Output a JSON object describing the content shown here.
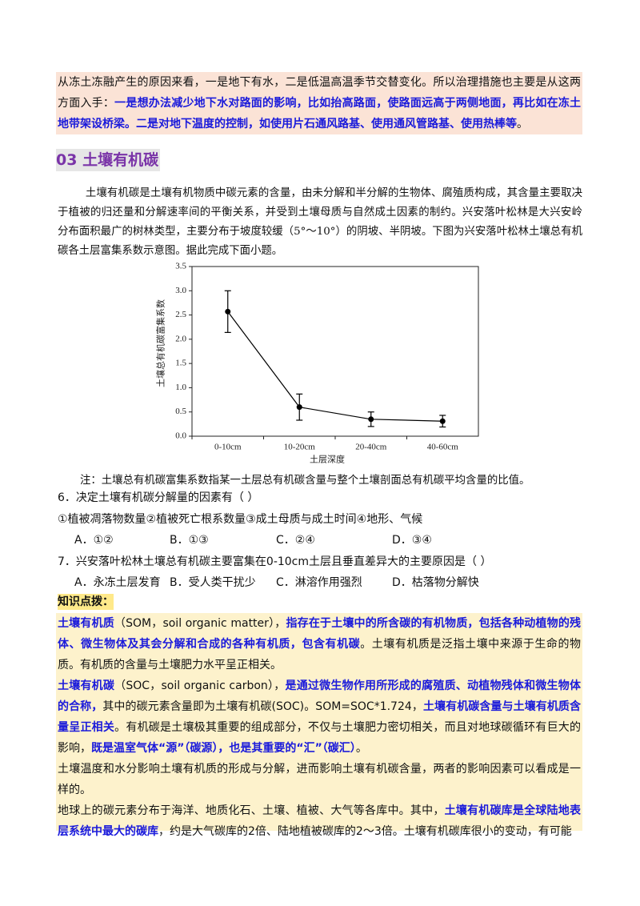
{
  "top_note": {
    "segments": [
      {
        "text": "从冻土冻融产生的原因来看，一是地下有水，二是低温高温季节交替变化。所以治理措施也主要是从这两方面入手：",
        "emphasis": false
      },
      {
        "text": "一是想办法减少地下水对路面的影响，比如抬高路面，使路面远高于两侧地面，再比如在冻土地带架设桥梁。二是对地下温度的控制，如使用片石通风路基、使用通风管路基、使用热棒等",
        "emphasis": true
      },
      {
        "text": "。",
        "emphasis": false
      }
    ]
  },
  "section": {
    "number": "03",
    "title": "土壤有机碳"
  },
  "intro": "土壤有机碳是土壤有机物质中碳元素的含量，由未分解和半分解的生物体、腐殖质构成，其含量主要取决于植被的归还量和分解速率间的平衡关系，并受到土壤母质与自然成土因素的制约。兴安落叶松林是大兴安岭分布面积最广的树林类型，主要分布于坡度较缓（5°～10°）的阴坡、半阴坡。下图为兴安落叶松林土壤总有机碳各土层富集系数示意图。据此完成下面小题。",
  "chart_data": {
    "type": "line",
    "x_label": "土层深度",
    "y_label": "土壤总有机碳富集系数",
    "categories": [
      "0-10cm",
      "10-20cm",
      "20-40cm",
      "40-60cm"
    ],
    "values": [
      2.57,
      0.6,
      0.35,
      0.31
    ],
    "errors": [
      0.43,
      0.27,
      0.15,
      0.12
    ],
    "color": "#000000",
    "ylim": [
      0,
      3.5
    ],
    "yticks": [
      {
        "value": 0,
        "label": "0.0"
      },
      0.5,
      {
        "value": 1,
        "label": "1.0"
      },
      1.5,
      {
        "value": 2,
        "label": "2.0"
      },
      2.5,
      {
        "value": 3,
        "label": "3.0"
      },
      3.5
    ]
  },
  "chart_note": "注：土壤总有机碳富集系数指某一土层总有机碳含量与整个土壤剖面总有机碳平均含量的比值。",
  "questions": [
    {
      "stem": "6．决定土壤有机碳分解量的因素有（    ）",
      "statement": "①植被凋落物数量②植被死亡根系数量③成土母质与成土时间④地形、气候",
      "options": [
        "A．①②",
        "B．①③",
        "C．②④",
        "D．③④"
      ]
    },
    {
      "stem": "7．兴安落叶松林土壤总有机碳主要富集在0-10cm土层且垂直差异大的主要原因是（    ）",
      "options": [
        "A．永冻土层发育",
        "B．受人类干扰少",
        "C．淋溶作用强烈",
        "D．枯落物分解快"
      ]
    }
  ],
  "knowledge": {
    "title": "知识点拨：",
    "paragraphs": [
      {
        "segments": [
          {
            "text": "土壤有机质",
            "emphasis": true
          },
          {
            "text": "（SOM，soil organic matter），",
            "emphasis": false
          },
          {
            "text": "指存在于土壤中的所含碳的有机物质，包括各种动植物的残体、微生物体及其会分解和合成的各种有机质，包含有机碳",
            "emphasis": true
          },
          {
            "text": "。土壤有机质是泛指土壤中来源于生命的物质。有机质的含量与土壤肥力水平呈正相关。",
            "emphasis": false
          }
        ]
      },
      {
        "segments": [
          {
            "text": "土壤有机碳",
            "emphasis": true
          },
          {
            "text": "（SOC，soil organic carbon），",
            "emphasis": false
          },
          {
            "text": "是通过微生物作用所形成的腐殖质、动植物残体和微生物体的合称，",
            "emphasis": true
          },
          {
            "text": "其中的碳元素含量即为土壤有机碳(SOC)。SOM=SOC*1.724，",
            "emphasis": false
          },
          {
            "text": "土壤有机碳含量与土壤有机质含量呈正相关",
            "emphasis": true
          },
          {
            "text": "。有机碳是土壤极其重要的组成部分，不仅与土壤肥力密切相关，而且对地球碳循环有巨大的影响，",
            "emphasis": false
          },
          {
            "text": "既是温室气体“源”（碳源），也是其重要的“汇”（碳汇）",
            "emphasis": true
          },
          {
            "text": "。",
            "emphasis": false
          }
        ]
      },
      {
        "segments": [
          {
            "text": "土壤温度和水分影响土壤有机质的形成与分解，进而影响土壤有机碳含量，两者的影响因素可以看成是一样的。",
            "emphasis": false
          }
        ]
      },
      {
        "segments": [
          {
            "text": "地球上的碳元素分布于海洋、地质化石、土壤、植被、大气等各库中。其中，",
            "emphasis": false
          },
          {
            "text": "土壤有机碳库是全球陆地表层系统中最大的碳库",
            "emphasis": true
          },
          {
            "text": "，约是大气碳库的2倍、陆地植被碳库的2～3倍。土壤有机碳库很小的变动，有可能",
            "emphasis": false
          }
        ]
      }
    ]
  }
}
